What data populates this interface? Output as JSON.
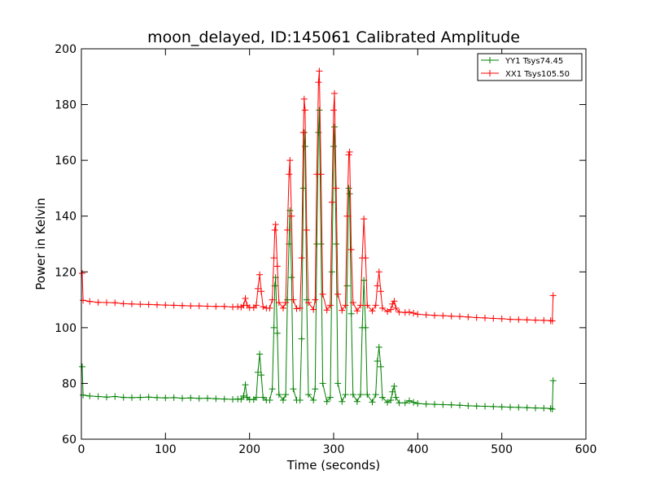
{
  "chart_data": {
    "type": "line",
    "title": "moon_delayed, ID:145061 Calibrated Amplitude",
    "xlabel": "Time (seconds)",
    "ylabel": "Power in Kelvin",
    "xlim": [
      0,
      600
    ],
    "ylim": [
      60,
      200
    ],
    "xticks": [
      0,
      100,
      200,
      300,
      400,
      500,
      600
    ],
    "yticks": [
      60,
      80,
      100,
      120,
      140,
      160,
      180,
      200
    ],
    "xtick_labels": [
      "0",
      "100",
      "200",
      "300",
      "400",
      "500",
      "600"
    ],
    "ytick_labels": [
      "60",
      "80",
      "100",
      "120",
      "140",
      "160",
      "180",
      "200"
    ],
    "grid": false,
    "legend_position": "top-right",
    "marker": "+",
    "series": [
      {
        "name": "YY1 Tsys74.45",
        "color": "#008000",
        "points": [
          [
            1,
            86
          ],
          [
            2,
            75.8
          ],
          [
            10,
            75.5
          ],
          [
            20,
            75.3
          ],
          [
            30,
            75.1
          ],
          [
            40,
            75.3
          ],
          [
            50,
            75.0
          ],
          [
            60,
            74.9
          ],
          [
            70,
            75.0
          ],
          [
            80,
            75.1
          ],
          [
            90,
            74.9
          ],
          [
            100,
            74.8
          ],
          [
            110,
            74.9
          ],
          [
            120,
            74.7
          ],
          [
            130,
            74.8
          ],
          [
            140,
            74.6
          ],
          [
            150,
            74.7
          ],
          [
            160,
            74.5
          ],
          [
            170,
            74.4
          ],
          [
            180,
            74.3
          ],
          [
            186,
            74.4
          ],
          [
            190,
            74.3
          ],
          [
            193,
            75.5
          ],
          [
            195,
            79.5
          ],
          [
            197,
            75.0
          ],
          [
            200,
            74.2
          ],
          [
            205,
            74.2
          ],
          [
            208,
            75.0
          ],
          [
            210,
            84.0
          ],
          [
            212,
            90.5
          ],
          [
            214,
            83.0
          ],
          [
            216,
            75.0
          ],
          [
            220,
            74.0
          ],
          [
            224,
            74.0
          ],
          [
            227,
            78.0
          ],
          [
            229,
            100.0
          ],
          [
            230,
            115.0
          ],
          [
            231,
            118.0
          ],
          [
            233,
            98.0
          ],
          [
            235,
            76.0
          ],
          [
            240,
            74.0
          ],
          [
            243,
            76.0
          ],
          [
            245,
            110.0
          ],
          [
            247,
            130.0
          ],
          [
            248,
            142.0
          ],
          [
            250,
            118.0
          ],
          [
            252,
            78.0
          ],
          [
            256,
            74.0
          ],
          [
            260,
            74.0
          ],
          [
            262,
            96.0
          ],
          [
            264,
            150.0
          ],
          [
            265,
            170.0
          ],
          [
            266,
            165.0
          ],
          [
            268,
            110.0
          ],
          [
            270,
            76.0
          ],
          [
            276,
            74.0
          ],
          [
            278,
            78.0
          ],
          [
            280,
            130.0
          ],
          [
            282,
            170.0
          ],
          [
            283,
            178.0
          ],
          [
            285,
            130.0
          ],
          [
            287,
            80.0
          ],
          [
            292,
            73.5
          ],
          [
            296,
            75.0
          ],
          [
            298,
            120.0
          ],
          [
            300,
            165.0
          ],
          [
            301,
            172.0
          ],
          [
            303,
            130.0
          ],
          [
            305,
            80.0
          ],
          [
            310,
            73.5
          ],
          [
            314,
            76.0
          ],
          [
            316,
            115.0
          ],
          [
            318,
            150.0
          ],
          [
            319,
            148.0
          ],
          [
            321,
            105.0
          ],
          [
            323,
            76.0
          ],
          [
            328,
            73.5
          ],
          [
            332,
            76.0
          ],
          [
            334,
            100.0
          ],
          [
            336,
            117.0
          ],
          [
            338,
            100.0
          ],
          [
            340,
            76.0
          ],
          [
            346,
            73.3
          ],
          [
            350,
            76.0
          ],
          [
            352,
            88.0
          ],
          [
            354,
            93.0
          ],
          [
            356,
            86.0
          ],
          [
            358,
            75.0
          ],
          [
            364,
            73.2
          ],
          [
            368,
            74.0
          ],
          [
            370,
            77.0
          ],
          [
            372,
            79.0
          ],
          [
            374,
            75.0
          ],
          [
            378,
            73.0
          ],
          [
            385,
            73.0
          ],
          [
            390,
            73.8
          ],
          [
            395,
            73.2
          ],
          [
            400,
            72.8
          ],
          [
            410,
            72.6
          ],
          [
            420,
            72.5
          ],
          [
            430,
            72.4
          ],
          [
            440,
            72.3
          ],
          [
            450,
            72.2
          ],
          [
            460,
            72.0
          ],
          [
            470,
            71.9
          ],
          [
            480,
            71.8
          ],
          [
            490,
            71.7
          ],
          [
            500,
            71.6
          ],
          [
            510,
            71.5
          ],
          [
            520,
            71.4
          ],
          [
            530,
            71.3
          ],
          [
            540,
            71.2
          ],
          [
            550,
            71.1
          ],
          [
            558,
            71.0
          ],
          [
            560,
            70.8
          ],
          [
            561,
            81.0
          ]
        ]
      },
      {
        "name": "XX1 Tsys105.50",
        "color": "#ff0000",
        "points": [
          [
            1,
            119.5
          ],
          [
            2,
            109.8
          ],
          [
            10,
            109.4
          ],
          [
            20,
            109.1
          ],
          [
            30,
            109.0
          ],
          [
            40,
            108.9
          ],
          [
            50,
            108.6
          ],
          [
            60,
            108.5
          ],
          [
            70,
            108.4
          ],
          [
            80,
            108.3
          ],
          [
            90,
            108.2
          ],
          [
            100,
            108.1
          ],
          [
            110,
            108.0
          ],
          [
            120,
            107.9
          ],
          [
            130,
            107.8
          ],
          [
            140,
            107.8
          ],
          [
            150,
            107.7
          ],
          [
            160,
            107.6
          ],
          [
            170,
            107.6
          ],
          [
            180,
            107.4
          ],
          [
            186,
            107.5
          ],
          [
            190,
            107.3
          ],
          [
            193,
            108.0
          ],
          [
            195,
            110.5
          ],
          [
            197,
            108.0
          ],
          [
            200,
            107.2
          ],
          [
            205,
            107.2
          ],
          [
            208,
            108.0
          ],
          [
            210,
            114.0
          ],
          [
            212,
            119.0
          ],
          [
            214,
            113.0
          ],
          [
            216,
            107.5
          ],
          [
            220,
            107.0
          ],
          [
            224,
            107.0
          ],
          [
            227,
            110.0
          ],
          [
            229,
            125.0
          ],
          [
            230,
            135.0
          ],
          [
            231,
            137.0
          ],
          [
            233,
            122.0
          ],
          [
            235,
            109.0
          ],
          [
            240,
            107.0
          ],
          [
            243,
            109.0
          ],
          [
            245,
            135.0
          ],
          [
            247,
            155.0
          ],
          [
            248,
            160.0
          ],
          [
            250,
            140.0
          ],
          [
            252,
            110.0
          ],
          [
            256,
            106.8
          ],
          [
            260,
            107.0
          ],
          [
            262,
            125.0
          ],
          [
            264,
            170.0
          ],
          [
            265,
            182.0
          ],
          [
            266,
            178.0
          ],
          [
            268,
            135.0
          ],
          [
            270,
            109.0
          ],
          [
            276,
            106.5
          ],
          [
            278,
            110.0
          ],
          [
            280,
            155.0
          ],
          [
            282,
            188.0
          ],
          [
            283,
            192.0
          ],
          [
            285,
            155.0
          ],
          [
            287,
            112.0
          ],
          [
            292,
            106.3
          ],
          [
            296,
            108.0
          ],
          [
            298,
            145.0
          ],
          [
            300,
            178.0
          ],
          [
            301,
            184.0
          ],
          [
            303,
            150.0
          ],
          [
            305,
            112.0
          ],
          [
            310,
            106.2
          ],
          [
            314,
            108.0
          ],
          [
            316,
            140.0
          ],
          [
            318,
            162.0
          ],
          [
            319,
            163.0
          ],
          [
            321,
            128.0
          ],
          [
            323,
            109.0
          ],
          [
            328,
            106.0
          ],
          [
            332,
            108.0
          ],
          [
            334,
            125.0
          ],
          [
            336,
            139.0
          ],
          [
            338,
            125.0
          ],
          [
            340,
            108.0
          ],
          [
            346,
            106.0
          ],
          [
            350,
            108.0
          ],
          [
            352,
            115.0
          ],
          [
            354,
            120.0
          ],
          [
            356,
            113.0
          ],
          [
            358,
            107.0
          ],
          [
            364,
            105.8
          ],
          [
            368,
            106.5
          ],
          [
            370,
            108.5
          ],
          [
            372,
            109.5
          ],
          [
            374,
            107.0
          ],
          [
            378,
            105.6
          ],
          [
            385,
            105.4
          ],
          [
            390,
            105.6
          ],
          [
            395,
            105.2
          ],
          [
            400,
            104.8
          ],
          [
            410,
            104.6
          ],
          [
            420,
            104.4
          ],
          [
            430,
            104.3
          ],
          [
            440,
            104.1
          ],
          [
            450,
            104.0
          ],
          [
            460,
            103.8
          ],
          [
            470,
            103.6
          ],
          [
            480,
            103.5
          ],
          [
            490,
            103.3
          ],
          [
            500,
            103.2
          ],
          [
            510,
            103.0
          ],
          [
            520,
            102.9
          ],
          [
            530,
            102.8
          ],
          [
            540,
            102.7
          ],
          [
            550,
            102.6
          ],
          [
            558,
            102.5
          ],
          [
            560,
            102.4
          ],
          [
            561,
            111.5
          ]
        ]
      }
    ]
  }
}
